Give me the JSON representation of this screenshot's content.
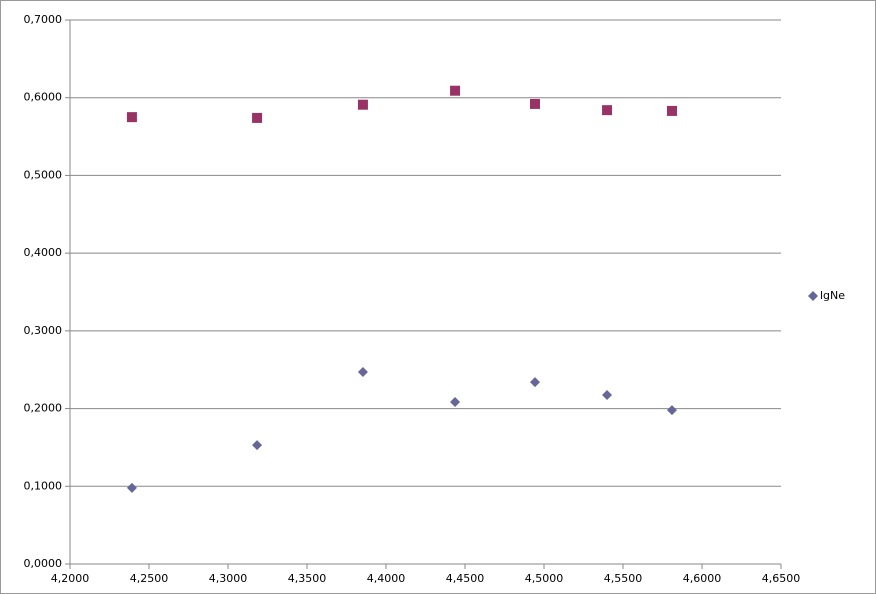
{
  "chart_data": {
    "type": "scatter",
    "series": [
      {
        "name": "lgNe",
        "color": "#666699",
        "marker": "diamond",
        "x": [
          4.2392,
          4.3184,
          4.3854,
          4.4437,
          4.4943,
          4.5399,
          4.581
        ],
        "values": [
          0.098,
          0.153,
          0.247,
          0.2085,
          0.234,
          0.2175,
          0.198
        ]
      },
      {
        "color": "#993366",
        "marker": "square",
        "x": [
          4.2392,
          4.3184,
          4.3854,
          4.4437,
          4.4943,
          4.5399,
          4.581
        ],
        "values": [
          0.575,
          0.574,
          0.591,
          0.609,
          0.592,
          0.584,
          0.583
        ]
      }
    ],
    "xlim": [
      4.2,
      4.65
    ],
    "xticks": [
      {
        "value": 4.2,
        "label": "4,2000"
      },
      {
        "value": 4.25,
        "label": "4,2500"
      },
      {
        "value": 4.3,
        "label": "4,3000"
      },
      {
        "value": 4.35,
        "label": "4,3500"
      },
      {
        "value": 4.4,
        "label": "4,4000"
      },
      {
        "value": 4.45,
        "label": "4,4500"
      },
      {
        "value": 4.5,
        "label": "4,5000"
      },
      {
        "value": 4.55,
        "label": "4,5500"
      },
      {
        "value": 4.6,
        "label": "4,6000"
      },
      {
        "value": 4.65,
        "label": "4,6500"
      }
    ],
    "ylim": [
      0,
      0.7
    ],
    "yticks": [
      {
        "value": 0,
        "label": "0,0000"
      },
      {
        "value": 0.1,
        "label": "0,1000"
      },
      {
        "value": 0.2,
        "label": "0,2000"
      },
      {
        "value": 0.3,
        "label": "0,3000"
      },
      {
        "value": 0.4,
        "label": "0,4000"
      },
      {
        "value": 0.5,
        "label": "0,5000"
      },
      {
        "value": 0.6,
        "label": "0,6000"
      },
      {
        "value": 0.7,
        "label": "0,7000"
      }
    ],
    "grid": true,
    "legend": "right"
  }
}
